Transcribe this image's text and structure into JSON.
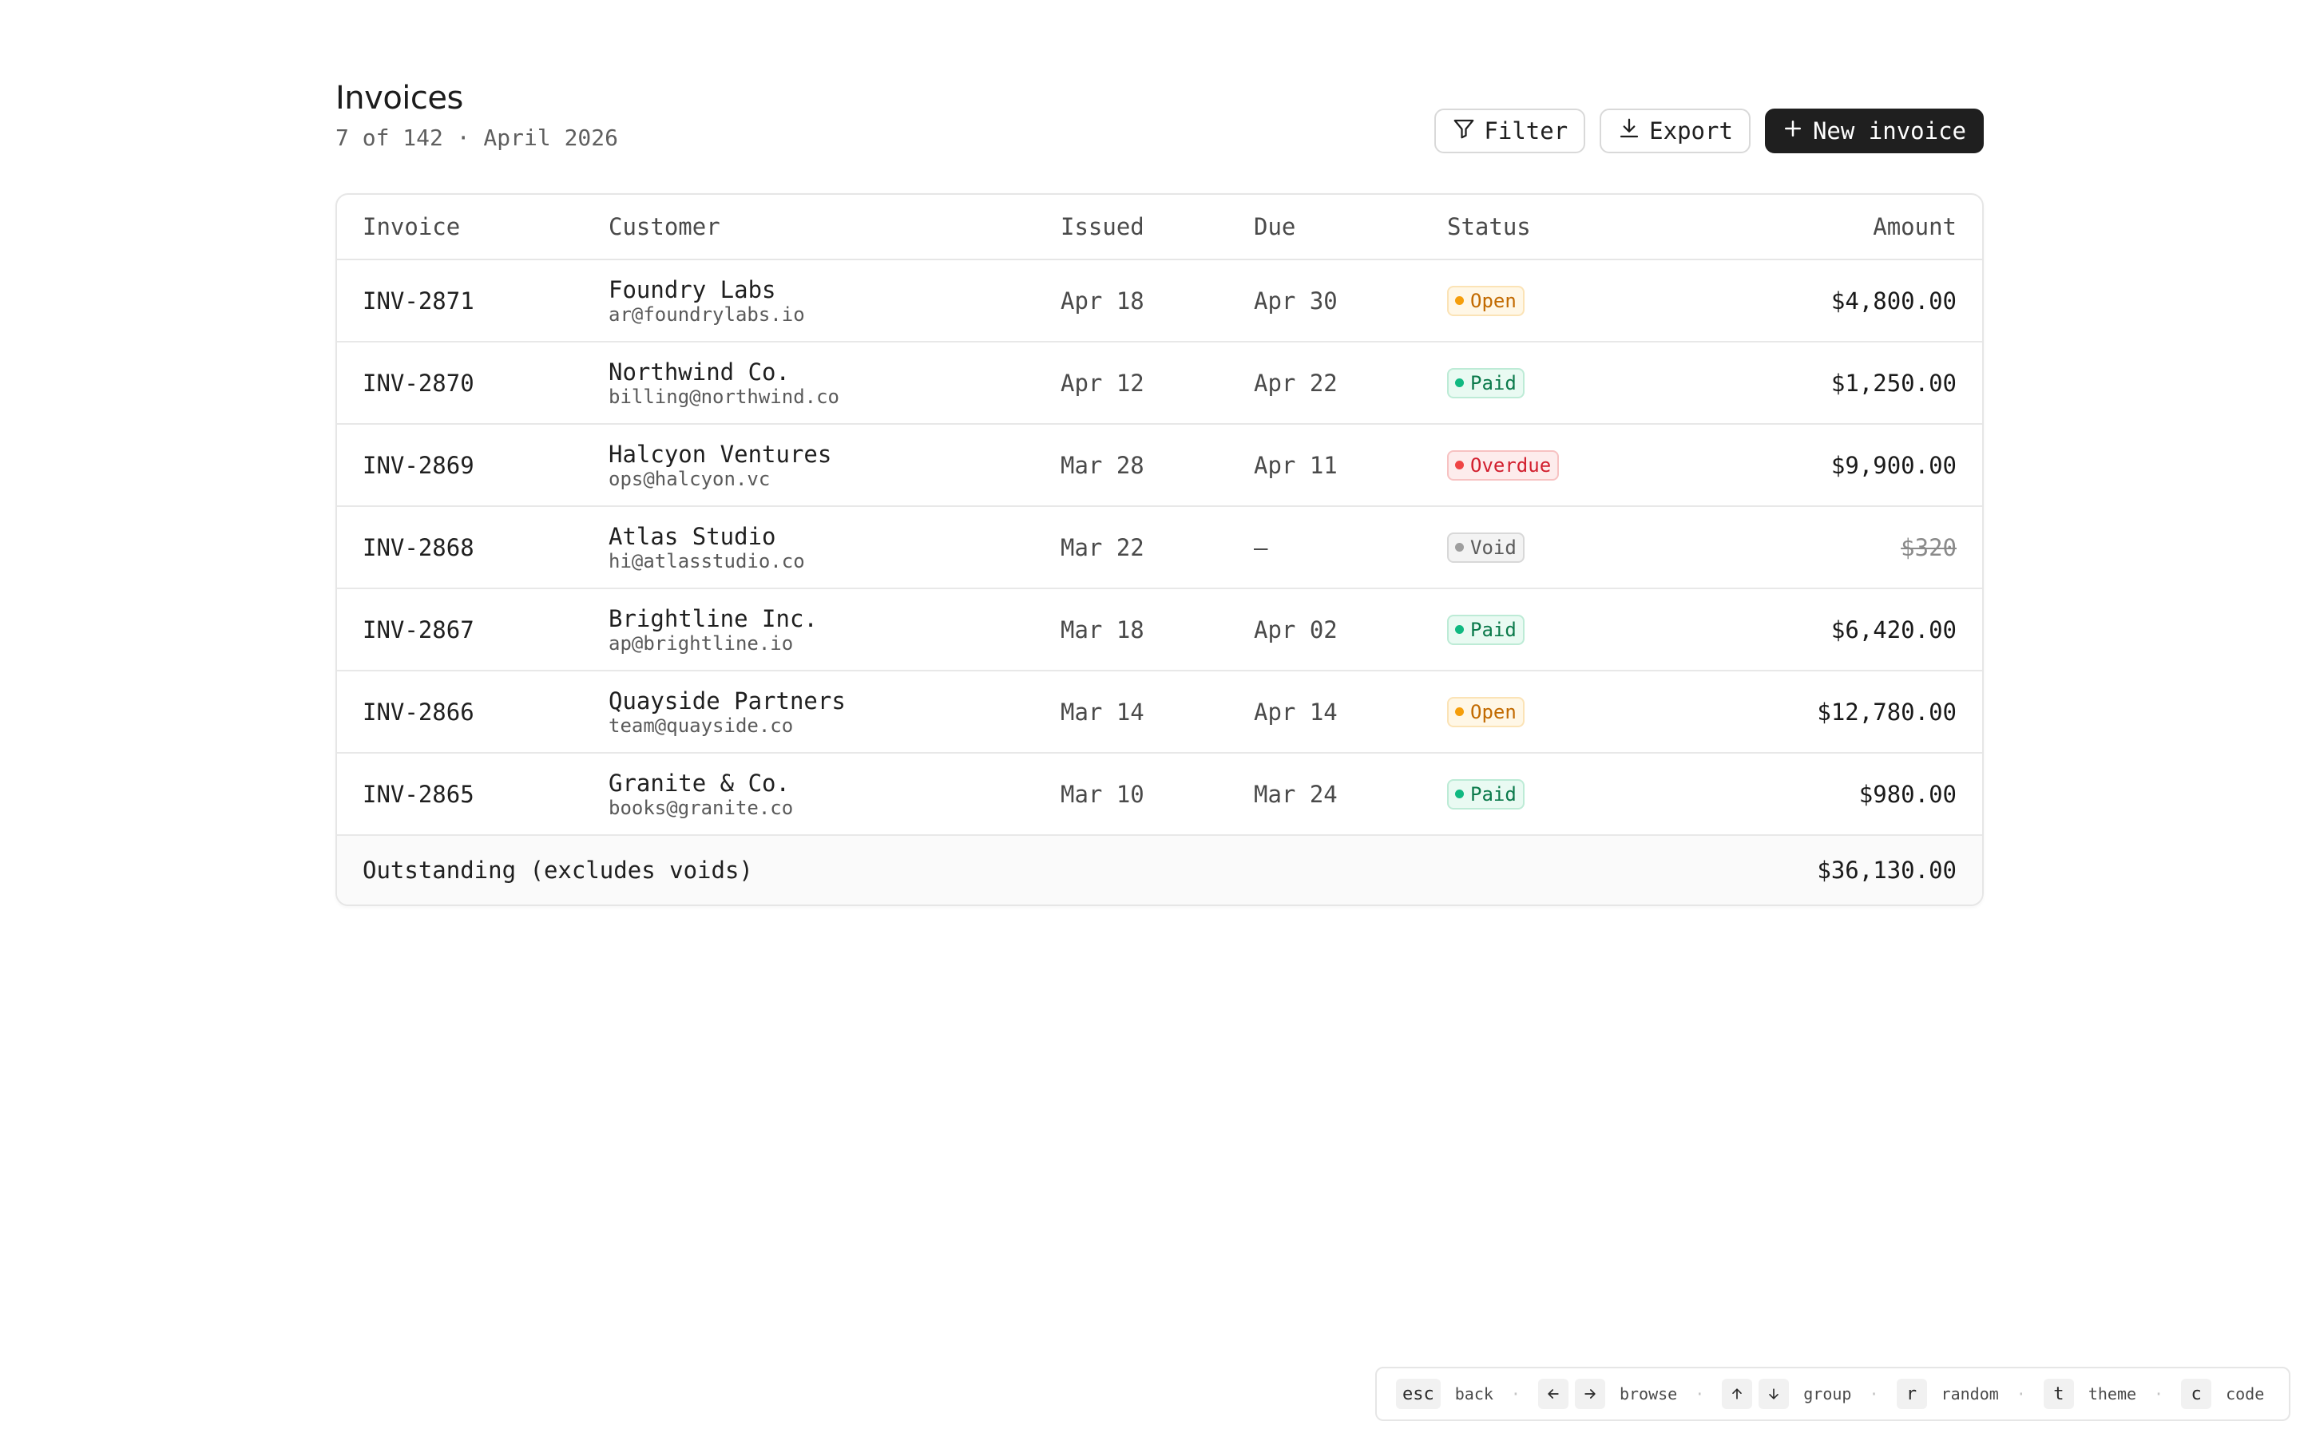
{
  "header": {
    "title": "Invoices",
    "subtitle": "7 of 142 · April 2026",
    "filter_label": "Filter",
    "export_label": "Export",
    "new_invoice_label": "New invoice"
  },
  "table": {
    "columns": {
      "invoice": "Invoice",
      "customer": "Customer",
      "issued": "Issued",
      "due": "Due",
      "status": "Status",
      "amount": "Amount"
    },
    "rows": [
      {
        "invoice": "INV-2871",
        "name": "Foundry Labs",
        "email": "ar@foundrylabs.io",
        "issued": "Apr 18",
        "due": "Apr 30",
        "status": "Open",
        "amount": "$4,800.00"
      },
      {
        "invoice": "INV-2870",
        "name": "Northwind Co.",
        "email": "billing@northwind.co",
        "issued": "Apr 12",
        "due": "Apr 22",
        "status": "Paid",
        "amount": "$1,250.00"
      },
      {
        "invoice": "INV-2869",
        "name": "Halcyon Ventures",
        "email": "ops@halcyon.vc",
        "issued": "Mar 28",
        "due": "Apr 11",
        "status": "Overdue",
        "amount": "$9,900.00"
      },
      {
        "invoice": "INV-2868",
        "name": "Atlas Studio",
        "email": "hi@atlasstudio.co",
        "issued": "Mar 22",
        "due": "—",
        "status": "Void",
        "amount": "$320"
      },
      {
        "invoice": "INV-2867",
        "name": "Brightline Inc.",
        "email": "ap@brightline.io",
        "issued": "Mar 18",
        "due": "Apr 02",
        "status": "Paid",
        "amount": "$6,420.00"
      },
      {
        "invoice": "INV-2866",
        "name": "Quayside Partners",
        "email": "team@quayside.co",
        "issued": "Mar 14",
        "due": "Apr 14",
        "status": "Open",
        "amount": "$12,780.00"
      },
      {
        "invoice": "INV-2865",
        "name": "Granite & Co.",
        "email": "books@granite.co",
        "issued": "Mar 10",
        "due": "Mar 24",
        "status": "Paid",
        "amount": "$980.00"
      }
    ],
    "footer": {
      "label": "Outstanding (excludes voids)",
      "total": "$36,130.00"
    }
  },
  "status_colors": {
    "open": "#f59e0b",
    "paid": "#10b981",
    "overdue": "#ef4444",
    "void": "#9e9e9e"
  },
  "shortcuts": {
    "back_key": "esc",
    "back_label": "back",
    "browse_label": "browse",
    "group_label": "group",
    "random_key": "r",
    "random_label": "random",
    "theme_key": "t",
    "theme_label": "theme",
    "code_key": "c",
    "code_label": "code",
    "icons": [
      "arrow-left-icon",
      "arrow-right-icon",
      "arrow-up-icon",
      "arrow-down-icon"
    ]
  }
}
